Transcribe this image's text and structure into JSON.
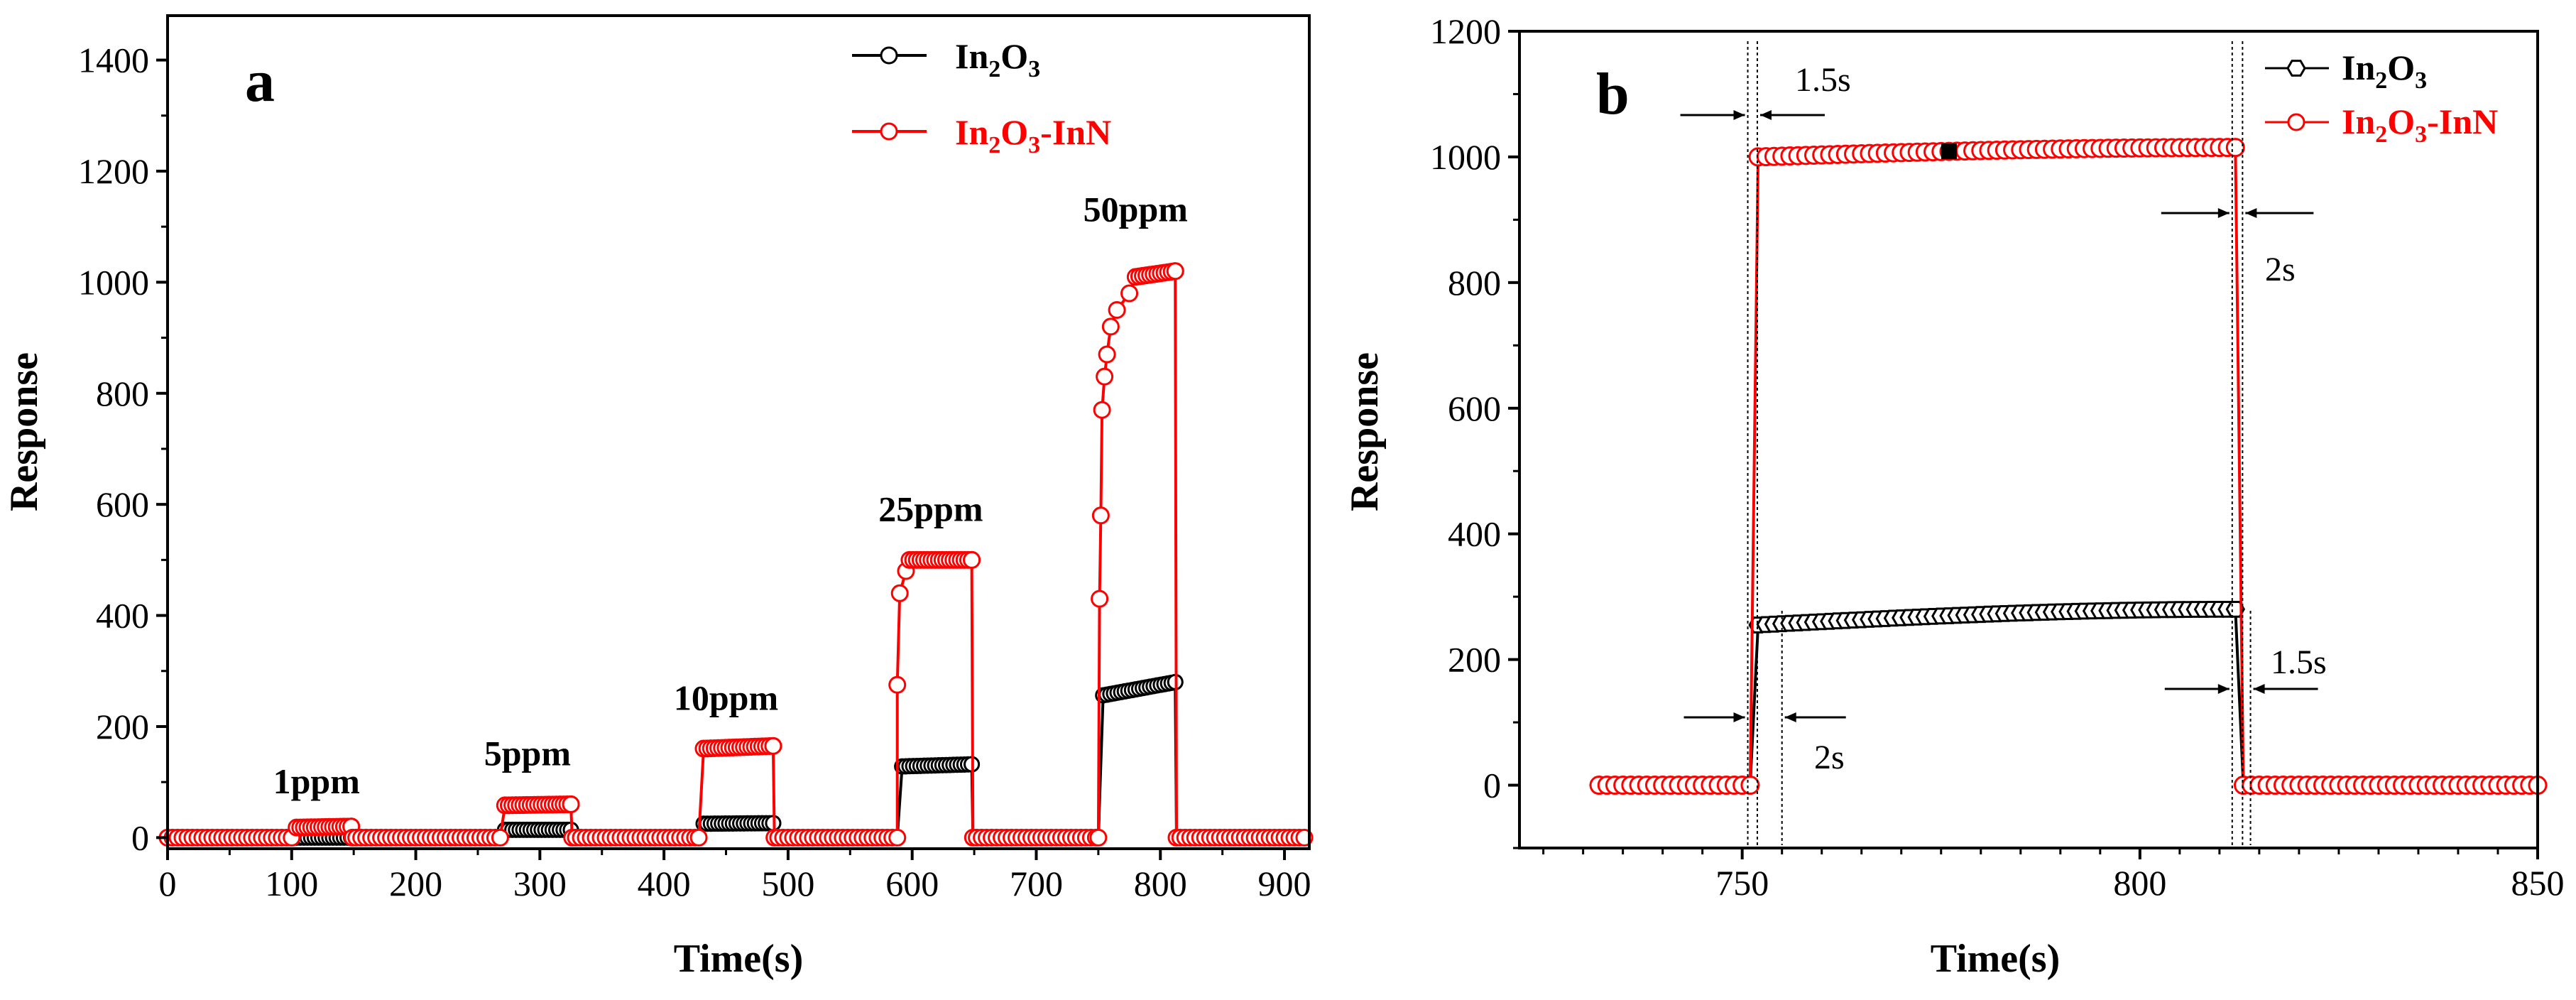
{
  "colors": {
    "in2o3": "#000000",
    "in2o3_inn": "#ff0000"
  },
  "chart_data": [
    {
      "type": "line",
      "panel": "a",
      "xlabel": "Time(s)",
      "ylabel": "Response",
      "xlim": [
        0,
        920
      ],
      "ylim": [
        -20,
        1480
      ],
      "xticks": [
        0,
        100,
        200,
        300,
        400,
        500,
        600,
        700,
        800,
        900
      ],
      "yticks": [
        0,
        200,
        400,
        600,
        800,
        1000,
        1200,
        1400
      ],
      "legend": {
        "position": "top-right",
        "entries": [
          {
            "series": "In2O3",
            "base": "In",
            "sub1": "2",
            "mid": "O",
            "sub2": "3",
            "suffix": ""
          },
          {
            "series": "In2O3-InN",
            "base": "In",
            "sub1": "2",
            "mid": "O",
            "sub2": "3",
            "suffix": "-InN"
          }
        ]
      },
      "annotations": [
        {
          "text": "1ppm",
          "x": 120,
          "y": 80
        },
        {
          "text": "5ppm",
          "x": 290,
          "y": 130
        },
        {
          "text": "10ppm",
          "x": 450,
          "y": 230
        },
        {
          "text": "25ppm",
          "x": 615,
          "y": 570
        },
        {
          "text": "50ppm",
          "x": 780,
          "y": 1110
        }
      ],
      "pulses": [
        {
          "concentration": "1ppm",
          "start": 100,
          "end": 148,
          "in2o3": [
            0,
            0
          ],
          "in2o3_inn": [
            18,
            20
          ]
        },
        {
          "concentration": "5ppm",
          "start": 268,
          "end": 325,
          "in2o3": [
            14,
            14
          ],
          "in2o3_inn": [
            58,
            60
          ]
        },
        {
          "concentration": "10ppm",
          "start": 428,
          "end": 488,
          "in2o3": [
            25,
            26
          ],
          "in2o3_inn": [
            160,
            165
          ]
        },
        {
          "concentration": "25ppm",
          "start": 588,
          "end": 648,
          "in2o3": [
            128,
            132
          ],
          "in2o3_inn": [
            500,
            500
          ]
        },
        {
          "concentration": "50ppm",
          "start": 750,
          "end": 812,
          "in2o3": [
            255,
            280
          ],
          "in2o3_inn": [
            1000,
            1020
          ]
        }
      ],
      "rise_samples": [
        {
          "time": 588,
          "in2o3_inn": 275
        },
        {
          "time": 590,
          "in2o3_inn": 440
        },
        {
          "time": 595,
          "in2o3_inn": 480
        },
        {
          "time": 751,
          "in2o3_inn": 430
        },
        {
          "time": 752,
          "in2o3_inn": 580
        },
        {
          "time": 753,
          "in2o3_inn": 770
        },
        {
          "time": 755,
          "in2o3_inn": 830
        },
        {
          "time": 757,
          "in2o3_inn": 870
        },
        {
          "time": 760,
          "in2o3_inn": 920
        },
        {
          "time": 765,
          "in2o3_inn": 950
        },
        {
          "time": 775,
          "in2o3_inn": 980
        }
      ],
      "baseline": 0
    },
    {
      "type": "line",
      "panel": "b",
      "xlabel": "Time(s)",
      "ylabel": "Response",
      "xlim": [
        722,
        850
      ],
      "ylim": [
        -100,
        1200
      ],
      "xticks": [
        750,
        800,
        850
      ],
      "yticks": [
        0,
        200,
        400,
        600,
        800,
        1000,
        1200
      ],
      "legend": {
        "position": "top-right",
        "entries": [
          {
            "series": "In2O3",
            "base": "In",
            "sub1": "2",
            "mid": "O",
            "sub2": "3",
            "suffix": ""
          },
          {
            "series": "In2O3-InN",
            "base": "In",
            "sub1": "2",
            "mid": "O",
            "sub2": "3",
            "suffix": "-InN"
          }
        ]
      },
      "gas_on": 751,
      "gas_off": 812,
      "in2o3": {
        "baseline": 0,
        "on_start": 255,
        "on_end": 280
      },
      "in2o3_inn": {
        "baseline": 0,
        "on_start": 1000,
        "on_end": 1015,
        "filled_marker_time": 776
      },
      "annotations": [
        {
          "text": "1.5s",
          "type": "response time",
          "series": "In2O3-InN"
        },
        {
          "text": "2s",
          "type": "recovery time",
          "series": "In2O3-InN"
        },
        {
          "text": "2s",
          "type": "response time",
          "series": "In2O3"
        },
        {
          "text": "1.5s",
          "type": "recovery time",
          "series": "In2O3"
        }
      ]
    }
  ]
}
